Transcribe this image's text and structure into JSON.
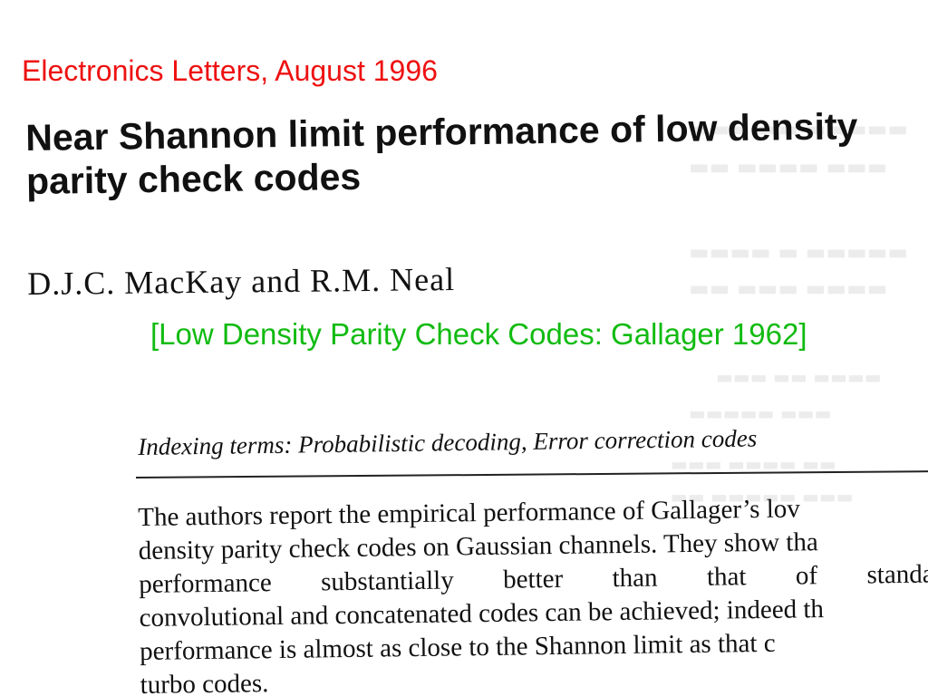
{
  "source_note": "Electronics Letters, August 1996",
  "paper": {
    "title": "Near Shannon limit performance of low density parity check codes",
    "authors": "D.J.C. MacKay and R.M. Neal",
    "indexing_terms": "Indexing terms: Probabilistic decoding, Error correction codes",
    "abstract_lines": [
      "The authors report the empirical performance of Gallager’s lov",
      "density parity check codes on Gaussian channels. They show tha",
      "performance substantially better than that of standarc",
      "convolutional and concatenated codes can be achieved; indeed th",
      "performance is almost as close to the Shannon limit as that c",
      "turbo codes."
    ]
  },
  "annotation": "[Low Density Parity Check Codes: Gallager 1962]",
  "colors": {
    "source_note": "#ee1111",
    "annotation": "#11bb11",
    "text": "#111111"
  }
}
